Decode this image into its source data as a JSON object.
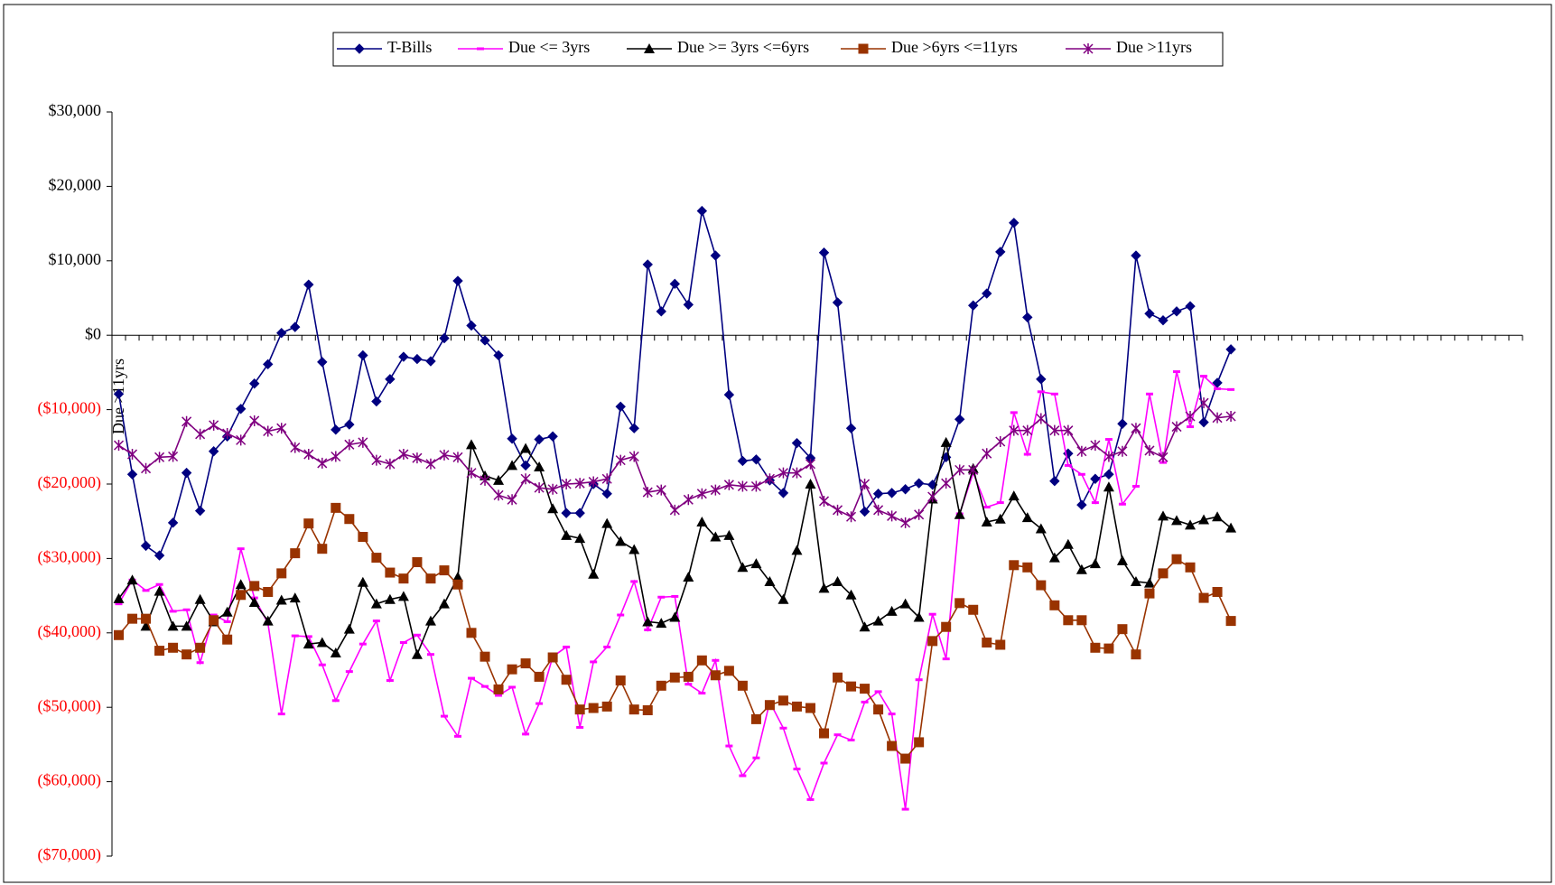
{
  "chart_data": {
    "type": "line",
    "annotation": "Due >11yrs",
    "negative_label_color": "#ff0000",
    "categories": [
      null,
      null,
      null,
      null,
      null,
      null,
      null,
      null,
      null,
      null,
      null,
      null,
      null,
      null,
      null,
      null,
      null,
      null,
      null,
      null,
      null,
      null,
      null,
      null,
      null,
      null,
      null,
      null,
      null,
      null,
      null,
      null,
      null,
      null,
      null,
      null,
      null,
      null,
      null,
      null,
      null,
      null,
      null,
      null,
      null,
      null,
      null,
      null,
      null,
      null,
      null,
      null,
      null,
      null,
      null,
      null,
      null,
      null,
      null,
      null,
      null,
      null,
      null,
      null,
      null,
      null,
      null,
      null,
      null,
      null,
      null,
      null,
      null,
      null,
      null,
      null,
      null,
      null,
      null,
      null,
      null,
      null,
      null,
      null,
      null,
      null,
      null,
      null,
      null,
      null,
      null,
      null,
      null,
      null,
      null,
      null,
      null,
      null,
      null,
      null,
      null,
      null,
      null,
      null
    ],
    "ylim": [
      -70000,
      30000
    ],
    "yticks": [
      {
        "value": -70000,
        "label": "($70,000)"
      },
      {
        "value": -60000,
        "label": "($60,000)"
      },
      {
        "value": -50000,
        "label": "($50,000)"
      },
      {
        "value": -40000,
        "label": "($40,000)"
      },
      {
        "value": -30000,
        "label": "($30,000)"
      },
      {
        "value": -20000,
        "label": "($20,000)"
      },
      {
        "value": -10000,
        "label": "($10,000)"
      },
      {
        "value": 0,
        "label": "$0"
      },
      {
        "value": 10000,
        "label": "$10,000"
      },
      {
        "value": 20000,
        "label": "$20,000"
      },
      {
        "value": 30000,
        "label": "$30,000"
      }
    ],
    "legend": "top",
    "series": [
      {
        "name": "T-Bills",
        "color": "#000080",
        "marker": "diamond",
        "values": [
          -7900,
          -18700,
          -28300,
          -29600,
          -25200,
          -18500,
          -23600,
          -15600,
          -13600,
          -9900,
          -6500,
          -3900,
          300,
          1100,
          6800,
          -3600,
          -12700,
          -12000,
          -2700,
          -8900,
          -5900,
          -2900,
          -3200,
          -3500,
          -400,
          7300,
          1300,
          -700,
          -2700,
          -13900,
          -17500,
          -14000,
          -13600,
          -23900,
          -23900,
          -20000,
          -21300,
          -9600,
          -12500,
          9500,
          3200,
          6900,
          4100,
          16700,
          10700,
          -8000,
          -16900,
          -16700,
          -19500,
          -21200,
          -14500,
          -16500,
          11100,
          4400,
          -12500,
          -23700,
          -21300,
          -21200,
          -20700,
          -19900,
          -20100,
          -16400,
          -11300,
          4000,
          5600,
          11200,
          15100,
          2400,
          -5900,
          -19600,
          -15900,
          -22800,
          -19300,
          -18700,
          -11900,
          10700,
          2900,
          2000,
          3200,
          3900,
          -11700,
          -6400,
          -1900,
          null,
          null,
          null,
          null,
          null,
          null,
          null,
          null,
          null,
          null,
          null,
          null,
          null,
          null,
          null,
          null,
          null,
          null,
          null,
          null,
          null
        ]
      },
      {
        "name": "Due <= 3yrs",
        "color": "#ff00ff",
        "marker": "dash",
        "values": [
          -36100,
          -32900,
          -34300,
          -33500,
          -37100,
          -36900,
          -44000,
          -37600,
          -38500,
          -28700,
          -35300,
          -38700,
          -50900,
          -40400,
          -40500,
          -44300,
          -49100,
          -45200,
          -41500,
          -38400,
          -46400,
          -41300,
          -40300,
          -42900,
          -51200,
          -53900,
          -46100,
          -47200,
          -48400,
          -47300,
          -53600,
          -49500,
          -43200,
          -41900,
          -52700,
          -43900,
          -41900,
          -37600,
          -33100,
          -39600,
          -35200,
          -35100,
          -46900,
          -48100,
          -43700,
          -55200,
          -59200,
          -56800,
          -49300,
          -52800,
          -58300,
          -62400,
          -57500,
          -53700,
          -54400,
          -49300,
          -47900,
          -50900,
          -63700,
          -46300,
          -37500,
          -43500,
          -24000,
          -18500,
          -23100,
          -22500,
          -10400,
          -16000,
          -7600,
          -7900,
          -17500,
          -18700,
          -22500,
          -14000,
          -22700,
          -20300,
          -7900,
          -17100,
          -4900,
          -12300,
          -5500,
          -7200,
          -7300,
          null,
          null,
          null,
          null,
          null,
          null,
          null,
          null,
          null,
          null,
          null,
          null,
          null,
          null,
          null,
          null,
          null,
          null,
          null,
          null,
          null
        ]
      },
      {
        "name": "Due >= 3yrs <=6yrs",
        "color": "#000000",
        "marker": "triangle",
        "values": [
          -35400,
          -32900,
          -39100,
          -34400,
          -39100,
          -39100,
          -35500,
          -38500,
          -37200,
          -33500,
          -35900,
          -38400,
          -35600,
          -35300,
          -41500,
          -41300,
          -42700,
          -39500,
          -33200,
          -36100,
          -35500,
          -35100,
          -42900,
          -38400,
          -36100,
          -32500,
          -14700,
          -18900,
          -19500,
          -17500,
          -15200,
          -17700,
          -23300,
          -26900,
          -27300,
          -32100,
          -25300,
          -27700,
          -28800,
          -38500,
          -38700,
          -37900,
          -32500,
          -25100,
          -27100,
          -26900,
          -31200,
          -30700,
          -33100,
          -35500,
          -28900,
          -20000,
          -34000,
          -33100,
          -34900,
          -39200,
          -38400,
          -37100,
          -36100,
          -37900,
          -22000,
          -14400,
          -24100,
          -17900,
          -25100,
          -24700,
          -21600,
          -24500,
          -26000,
          -29900,
          -28100,
          -31500,
          -30700,
          -20400,
          -30300,
          -33100,
          -33300,
          -24300,
          -24900,
          -25500,
          -24800,
          -24400,
          -25900,
          null,
          null,
          null,
          null,
          null,
          null,
          null,
          null,
          null,
          null,
          null,
          null,
          null,
          null,
          null,
          null,
          null,
          null,
          null,
          null,
          null
        ]
      },
      {
        "name": "Due >6yrs <=11yrs",
        "color": "#993300",
        "marker": "square",
        "values": [
          -40300,
          -38100,
          -38100,
          -42400,
          -42000,
          -42900,
          -42000,
          -38300,
          -40900,
          -34900,
          -33700,
          -34500,
          -32000,
          -29300,
          -25300,
          -28700,
          -23200,
          -24700,
          -27100,
          -29900,
          -31900,
          -32700,
          -30500,
          -32700,
          -31600,
          -33500,
          -40000,
          -43200,
          -47600,
          -44900,
          -44100,
          -45900,
          -43300,
          -46300,
          -50300,
          -50100,
          -49900,
          -46400,
          -50300,
          -50400,
          -47100,
          -46000,
          -45900,
          -43700,
          -45700,
          -45100,
          -47100,
          -51600,
          -49700,
          -49100,
          -49900,
          -50100,
          -53500,
          -46000,
          -47200,
          -47500,
          -50300,
          -55200,
          -56900,
          -54700,
          -41100,
          -39200,
          -36000,
          -36900,
          -41300,
          -41600,
          -30900,
          -31200,
          -33600,
          -36300,
          -38300,
          -38300,
          -42000,
          -42100,
          -39500,
          -42900,
          -34700,
          -32000,
          -30100,
          -31200,
          -35300,
          -34500,
          -38400,
          null,
          null,
          null,
          null,
          null,
          null,
          null,
          null,
          null,
          null,
          null,
          null,
          null,
          null,
          null,
          null,
          null,
          null,
          null,
          null,
          null
        ]
      },
      {
        "name": "Due >11yrs",
        "color": "#800080",
        "marker": "asterisk",
        "values": [
          -14800,
          -16000,
          -17900,
          -16400,
          -16300,
          -11600,
          -13300,
          -12100,
          -13200,
          -14100,
          -11500,
          -12900,
          -12500,
          -15100,
          -16000,
          -17200,
          -16300,
          -14700,
          -14400,
          -16800,
          -17300,
          -16000,
          -16500,
          -17300,
          -16100,
          -16400,
          -18500,
          -19500,
          -21500,
          -22100,
          -19300,
          -20500,
          -20700,
          -20000,
          -19900,
          -19700,
          -19300,
          -16800,
          -16300,
          -21100,
          -20800,
          -23500,
          -22100,
          -21300,
          -20800,
          -20100,
          -20300,
          -20300,
          -19300,
          -18500,
          -18500,
          -17300,
          -22300,
          -23500,
          -24400,
          -20000,
          -23500,
          -24300,
          -25200,
          -24100,
          -21700,
          -19900,
          -18100,
          -18100,
          -15900,
          -14300,
          -12800,
          -12800,
          -11200,
          -12800,
          -12800,
          -15600,
          -14800,
          -16300,
          -15600,
          -12500,
          -15500,
          -16400,
          -12300,
          -10900,
          -9100,
          -11100,
          -10900,
          null,
          null,
          null,
          null,
          null,
          null,
          null,
          null,
          null,
          null,
          null,
          null,
          null,
          null,
          null,
          null,
          null,
          null,
          null,
          null,
          null
        ]
      }
    ]
  }
}
